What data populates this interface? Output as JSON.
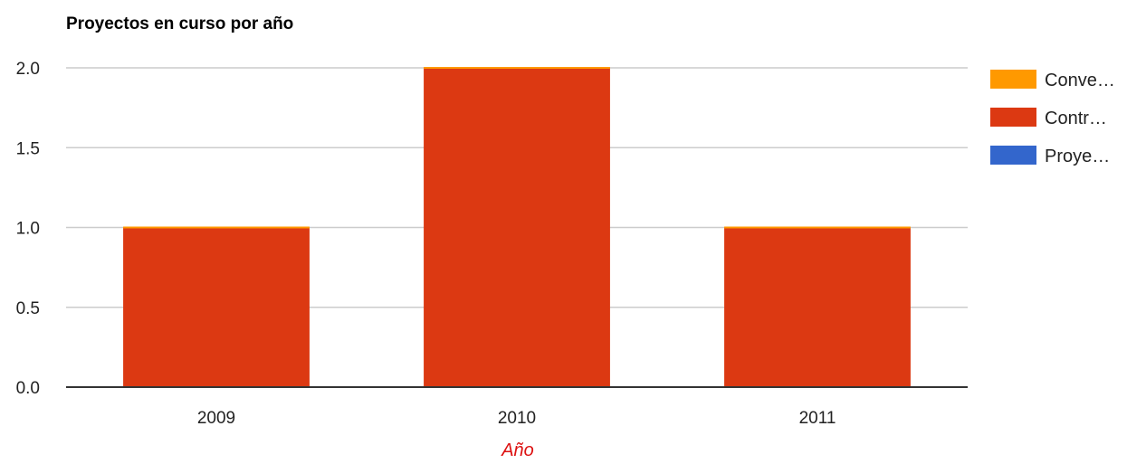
{
  "chart_data": {
    "type": "bar",
    "stacked": true,
    "title": "Proyectos en curso por año",
    "xlabel": "Año",
    "ylabel": "",
    "categories": [
      "2009",
      "2010",
      "2011"
    ],
    "series": [
      {
        "name": "Proyectos",
        "legend_label": "Proye…",
        "color": "#3366cc",
        "values": [
          0,
          0,
          0
        ]
      },
      {
        "name": "Contratos",
        "legend_label": "Contr…",
        "color": "#dc3912",
        "values": [
          1,
          2,
          1
        ]
      },
      {
        "name": "Convenios",
        "legend_label": "Conve…",
        "color": "#ff9900",
        "values": [
          0,
          0,
          0
        ]
      }
    ],
    "legend_order": [
      2,
      1,
      0
    ],
    "ylim": [
      0,
      2
    ],
    "yticks": [
      "0.0",
      "0.5",
      "1.0",
      "1.5",
      "2.0"
    ],
    "grid": true,
    "legend_position": "right",
    "xlabel_color": "#dd1111"
  }
}
